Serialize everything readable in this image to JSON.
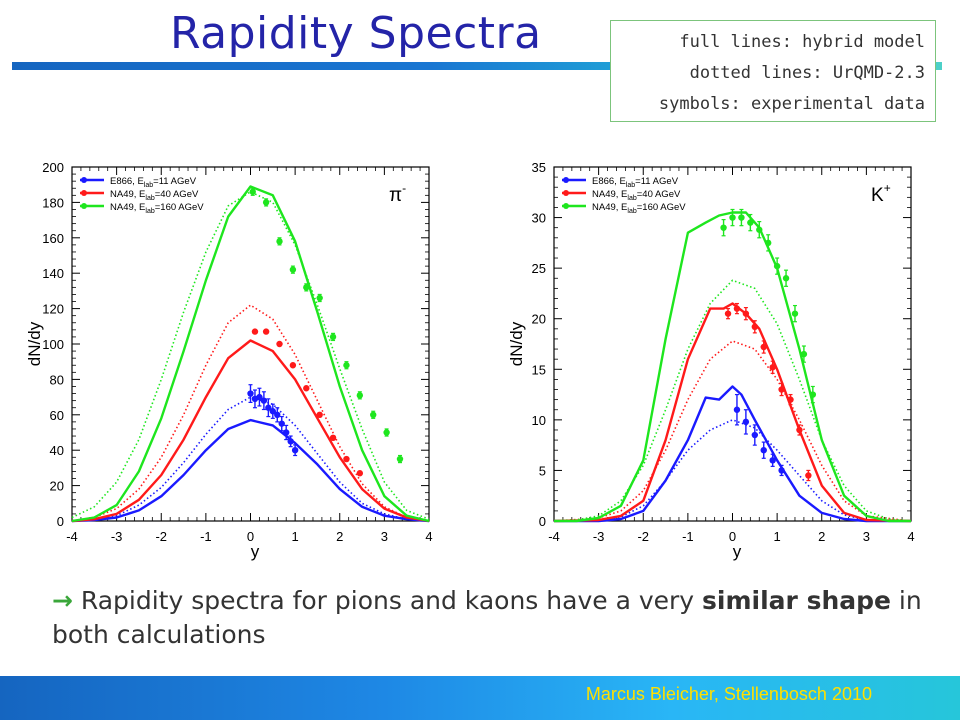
{
  "slide": {
    "title": "Rapidity Spectra",
    "notes": [
      "full lines: hybrid model",
      "dotted lines: UrQMD-2.3",
      "symbols: experimental data"
    ],
    "caption_arrow": "→",
    "caption_part1": " Rapidity spectra for pions and kaons have a very ",
    "caption_bold1": "similar shape",
    "caption_part2": " in both calculations",
    "footer": "Marcus Bleicher, Stellenbosch 2010"
  },
  "colors": {
    "title": "#2424a8",
    "blue": "#1a1aff",
    "red": "#ff1a1a",
    "green": "#1ee61e"
  },
  "chart_data": [
    {
      "type": "line",
      "particle": "π⁻",
      "particle_base": "π",
      "particle_sup": "-",
      "xlabel": "y",
      "ylabel": "dN/dy",
      "xlim": [
        -4,
        4
      ],
      "ylim": [
        0,
        200
      ],
      "xticks": [
        -4,
        -3,
        -2,
        -1,
        0,
        1,
        2,
        3,
        4
      ],
      "yticks": [
        0,
        20,
        40,
        60,
        80,
        100,
        120,
        140,
        160,
        180,
        200
      ],
      "legend": [
        {
          "label": "E866, E",
          "sub": "lab",
          "tail": "=11 AGeV",
          "color": "blue"
        },
        {
          "label": "NA49, E",
          "sub": "lab",
          "tail": "=40 AGeV",
          "color": "red"
        },
        {
          "label": "NA49, E",
          "sub": "lab",
          "tail": "=160 AGeV",
          "color": "green"
        }
      ],
      "series": [
        {
          "color": "blue",
          "style": "solid",
          "x": [
            -4,
            -3.5,
            -3,
            -2.5,
            -2,
            -1.5,
            -1,
            -0.5,
            0,
            0.5,
            1,
            1.5,
            2,
            2.5,
            3,
            3.5,
            4
          ],
          "y": [
            0,
            0.5,
            2,
            6,
            14,
            26,
            40,
            52,
            57,
            54,
            44,
            32,
            18,
            8,
            3,
            1,
            0
          ]
        },
        {
          "color": "blue",
          "style": "dotted",
          "x": [
            -4,
            -3.5,
            -3,
            -2.5,
            -2,
            -1.5,
            -1,
            -0.5,
            0,
            0.5,
            1,
            1.5,
            2,
            2.5,
            3,
            3.5,
            4
          ],
          "y": [
            0,
            1,
            3,
            9,
            19,
            33,
            49,
            63,
            70,
            66,
            54,
            38,
            22,
            10,
            4,
            1,
            0
          ]
        },
        {
          "color": "red",
          "style": "solid",
          "x": [
            -4,
            -3.5,
            -3,
            -2.5,
            -2,
            -1.5,
            -1,
            -0.5,
            0,
            0.5,
            1,
            1.5,
            2,
            2.5,
            3,
            3.5,
            4
          ],
          "y": [
            0,
            1,
            4,
            12,
            26,
            46,
            70,
            92,
            102,
            96,
            80,
            58,
            36,
            18,
            7,
            2,
            0
          ]
        },
        {
          "color": "red",
          "style": "dotted",
          "x": [
            -4,
            -3.5,
            -3,
            -2.5,
            -2,
            -1.5,
            -1,
            -0.5,
            0,
            0.5,
            1,
            1.5,
            2,
            2.5,
            3,
            3.5,
            4
          ],
          "y": [
            0,
            2,
            7,
            18,
            36,
            60,
            88,
            112,
            122,
            114,
            94,
            68,
            42,
            21,
            8,
            2,
            0
          ]
        },
        {
          "color": "green",
          "style": "solid",
          "x": [
            -4,
            -3.5,
            -3,
            -2.5,
            -2,
            -1.5,
            -1,
            -0.5,
            0,
            0.5,
            1,
            1.5,
            2,
            2.5,
            3,
            3.5,
            4
          ],
          "y": [
            0,
            2,
            9,
            28,
            58,
            96,
            136,
            172,
            189,
            184,
            158,
            118,
            76,
            40,
            14,
            3,
            0
          ]
        },
        {
          "color": "green",
          "style": "dotted",
          "x": [
            -4,
            -3.5,
            -3,
            -2.5,
            -2,
            -1.5,
            -1,
            -0.5,
            0,
            0.5,
            1,
            1.5,
            2,
            2.5,
            3,
            3.5,
            4
          ],
          "y": [
            2,
            8,
            22,
            46,
            80,
            118,
            152,
            178,
            186,
            180,
            156,
            122,
            86,
            52,
            22,
            6,
            1
          ]
        }
      ],
      "points": [
        {
          "color": "blue",
          "x": [
            0,
            0.1,
            0.2,
            0.3,
            0.4,
            0.5,
            0.6,
            0.7,
            0.8,
            0.9,
            1.0
          ],
          "y": [
            72,
            69,
            70,
            68,
            64,
            62,
            60,
            55,
            50,
            45,
            40
          ],
          "err": [
            5,
            5,
            5,
            5,
            5,
            4,
            4,
            4,
            4,
            3,
            3
          ]
        },
        {
          "color": "red",
          "x": [
            0.1,
            0.35,
            0.65,
            0.95,
            1.25,
            1.55,
            1.85,
            2.15,
            2.45
          ],
          "y": [
            107,
            107,
            100,
            88,
            75,
            60,
            47,
            35,
            27
          ],
          "err": [
            1,
            1,
            1,
            1,
            1,
            1,
            1,
            1,
            1
          ]
        },
        {
          "color": "green",
          "x": [
            0.05,
            0.35,
            0.65,
            0.95,
            1.25,
            1.55,
            1.85,
            2.15,
            2.45,
            2.75,
            3.05,
            3.35
          ],
          "y": [
            186,
            180,
            158,
            142,
            132,
            126,
            104,
            88,
            71,
            60,
            50,
            35
          ],
          "err": [
            2,
            2,
            2,
            2,
            2,
            2,
            2,
            2,
            2,
            2,
            2,
            2
          ]
        }
      ]
    },
    {
      "type": "line",
      "particle": "K⁺",
      "particle_base": "K",
      "particle_sup": "+",
      "xlabel": "y",
      "ylabel": "dN/dy",
      "xlim": [
        -4,
        4
      ],
      "ylim": [
        0,
        35
      ],
      "xticks": [
        -4,
        -3,
        -2,
        -1,
        0,
        1,
        2,
        3,
        4
      ],
      "yticks": [
        0,
        5,
        10,
        15,
        20,
        25,
        30,
        35
      ],
      "legend": [
        {
          "label": "E866, E",
          "sub": "lab",
          "tail": "=11 AGeV",
          "color": "blue"
        },
        {
          "label": "NA49, E",
          "sub": "lab",
          "tail": "=40 AGeV",
          "color": "red"
        },
        {
          "label": "NA49, E",
          "sub": "lab",
          "tail": "=160 AGeV",
          "color": "green"
        }
      ],
      "series": [
        {
          "color": "blue",
          "style": "solid",
          "x": [
            -4,
            -3,
            -2.5,
            -2,
            -1.5,
            -1,
            -0.6,
            -0.3,
            0,
            0.2,
            0.5,
            1,
            1.5,
            2,
            2.5,
            3,
            4
          ],
          "y": [
            0,
            0,
            0.2,
            1,
            4,
            8,
            12.2,
            12.0,
            13.3,
            12.5,
            10,
            6,
            2.5,
            0.8,
            0.2,
            0,
            0
          ]
        },
        {
          "color": "blue",
          "style": "dotted",
          "x": [
            -4,
            -3,
            -2.5,
            -2,
            -1.5,
            -1,
            -0.5,
            0,
            0.5,
            1,
            1.5,
            2,
            2.5,
            3,
            4
          ],
          "y": [
            0,
            0.1,
            0.4,
            1.5,
            4,
            7,
            9,
            10,
            9.2,
            7,
            4.5,
            2,
            0.6,
            0.1,
            0
          ]
        },
        {
          "color": "red",
          "style": "solid",
          "x": [
            -4,
            -3,
            -2.5,
            -2,
            -1.5,
            -1,
            -0.5,
            -0.2,
            0,
            0.3,
            0.6,
            1,
            1.5,
            2,
            2.5,
            3,
            4
          ],
          "y": [
            0,
            0.1,
            0.5,
            2,
            8,
            16,
            21,
            21,
            21.5,
            20.5,
            19,
            15,
            9,
            3.5,
            0.8,
            0.1,
            0
          ]
        },
        {
          "color": "red",
          "style": "dotted",
          "x": [
            -4,
            -3,
            -2.5,
            -2,
            -1.5,
            -1,
            -0.5,
            0,
            0.5,
            1,
            1.5,
            2,
            2.5,
            3,
            4
          ],
          "y": [
            0,
            0.3,
            1,
            3,
            7,
            12,
            16,
            17.8,
            17,
            14,
            10,
            5.5,
            2,
            0.5,
            0
          ]
        },
        {
          "color": "green",
          "style": "solid",
          "x": [
            -4,
            -3.5,
            -3,
            -2.5,
            -2,
            -1.5,
            -1,
            -0.6,
            -0.3,
            0,
            0.3,
            0.6,
            1,
            1.5,
            2,
            2.5,
            3,
            3.5,
            4
          ],
          "y": [
            0,
            0,
            0.3,
            1.5,
            6,
            18,
            28.5,
            29.5,
            30.2,
            30.5,
            30.5,
            29,
            25,
            17,
            8,
            2.5,
            0.5,
            0,
            0
          ]
        },
        {
          "color": "green",
          "style": "dotted",
          "x": [
            -4,
            -3.5,
            -3,
            -2.5,
            -2,
            -1.5,
            -1,
            -0.5,
            0,
            0.5,
            1,
            1.5,
            2,
            2.5,
            3,
            3.5,
            4
          ],
          "y": [
            0,
            0.1,
            0.5,
            2,
            5.5,
            11,
            17,
            21.5,
            23.8,
            23,
            19.5,
            14,
            8,
            3.5,
            1,
            0.2,
            0
          ]
        }
      ],
      "points": [
        {
          "color": "blue",
          "x": [
            0.1,
            0.3,
            0.5,
            0.7,
            0.9,
            1.1
          ],
          "y": [
            11,
            9.8,
            8.5,
            7,
            6,
            5
          ],
          "err": [
            1.5,
            1.2,
            1,
            0.8,
            0.6,
            0.5
          ]
        },
        {
          "color": "red",
          "x": [
            -0.1,
            0.1,
            0.3,
            0.5,
            0.7,
            0.9,
            1.1,
            1.3,
            1.5,
            1.7
          ],
          "y": [
            20.5,
            21,
            20.5,
            19.2,
            17.2,
            15.2,
            13,
            12,
            9,
            4.5
          ],
          "err": [
            0.5,
            0.5,
            0.6,
            0.6,
            0.6,
            0.6,
            0.6,
            0.5,
            0.5,
            0.5
          ]
        },
        {
          "color": "green",
          "x": [
            -0.2,
            0,
            0.2,
            0.4,
            0.6,
            0.8,
            1.0,
            1.2,
            1.4,
            1.6,
            1.8
          ],
          "y": [
            29,
            30,
            30,
            29.5,
            28.8,
            27.5,
            25.2,
            24,
            20.5,
            16.5,
            12.5
          ],
          "err": [
            0.8,
            0.8,
            0.8,
            0.8,
            0.8,
            0.8,
            0.8,
            0.8,
            0.8,
            0.8,
            0.8
          ]
        }
      ]
    }
  ]
}
